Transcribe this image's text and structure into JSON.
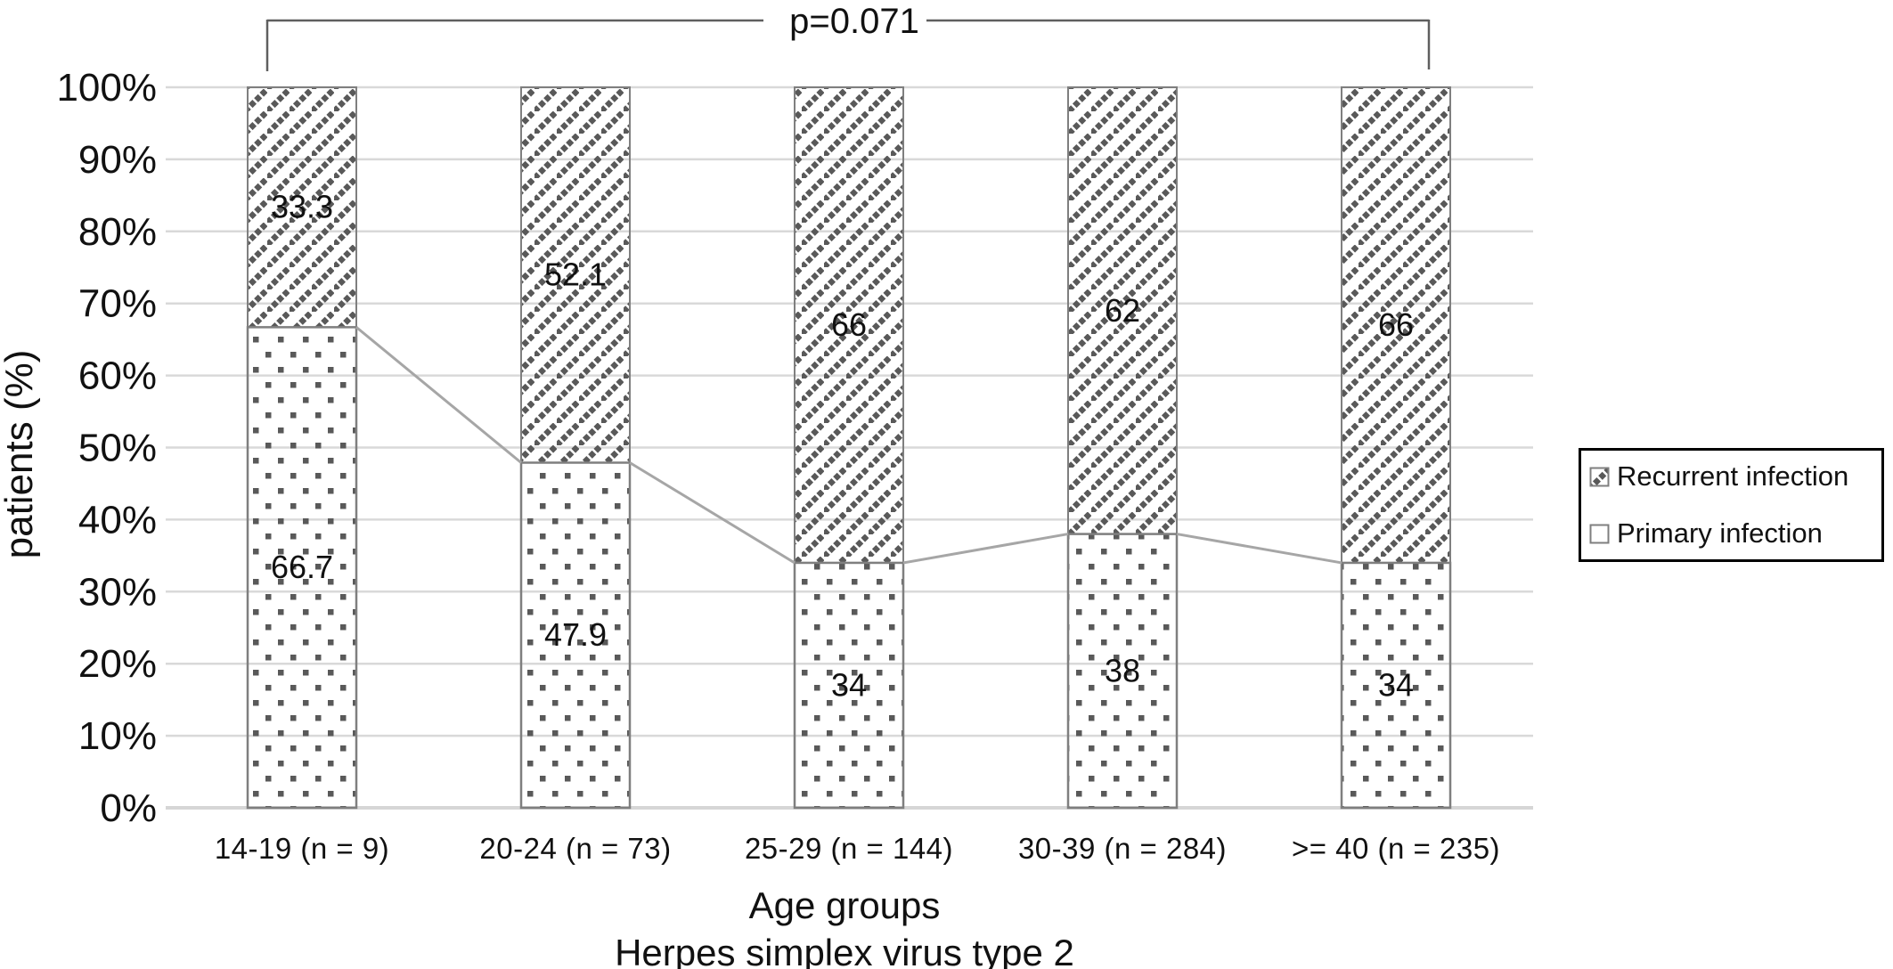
{
  "annotation": {
    "p_value": "p=0.071"
  },
  "y_axis": {
    "title": "patients (%)"
  },
  "x_axis": {
    "title_line1": "Age groups",
    "title_line2": "Herpes simplex virus type 2"
  },
  "legend": {
    "items": [
      {
        "label": "Recurrent infection",
        "pattern": "diagonal-hatch"
      },
      {
        "label": "Primary infection",
        "pattern": "dotted"
      }
    ]
  },
  "colors": {
    "pattern_gray": "#595959",
    "bar_border": "#7f7f7f",
    "gridline": "#d9d9d9",
    "axis_line": "#d6d6d6",
    "connector_line": "#a6a6a6",
    "bracket": "#5f5f5f",
    "text": "#111111"
  },
  "chart_data": {
    "type": "bar",
    "stacked": true,
    "unit": "percent",
    "title": "",
    "xlabel": "Age groups",
    "xlabel_line2": "Herpes simplex virus type 2",
    "ylabel": "patients (%)",
    "ylim": [
      0,
      100
    ],
    "yticks_percent": [
      0,
      10,
      20,
      30,
      40,
      50,
      60,
      70,
      80,
      90,
      100
    ],
    "grid": true,
    "legend_position": "right",
    "annotation": "p=0.071",
    "annotation_type": "significance-bracket-spanning-all-bars",
    "series_connector_lines": true,
    "categories": [
      "14-19 (n = 9)",
      "20-24 (n = 73)",
      "25-29 (n = 144)",
      "30-39 (n = 284)",
      ">= 40 (n = 235)"
    ],
    "series": [
      {
        "name": "Primary infection",
        "pattern": "dotted",
        "values": [
          66.7,
          47.9,
          34,
          38,
          34
        ],
        "labels": [
          "66.7",
          "47.9",
          "34",
          "38",
          "34"
        ]
      },
      {
        "name": "Recurrent infection",
        "pattern": "diagonal-hatch",
        "values": [
          33.3,
          52.1,
          66,
          62,
          66
        ],
        "labels": [
          "33.3",
          "52.1",
          "66",
          "62",
          "66"
        ]
      }
    ]
  }
}
